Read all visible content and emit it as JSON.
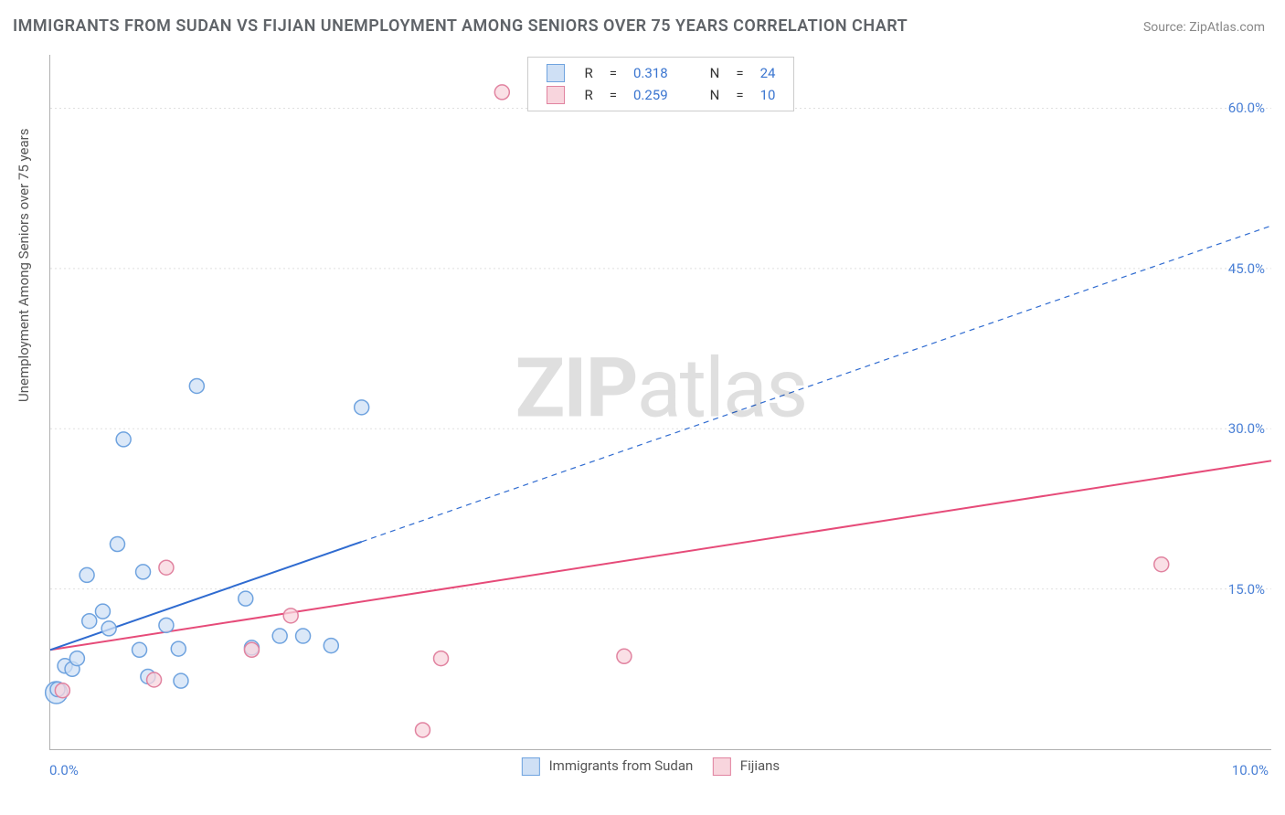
{
  "title": "IMMIGRANTS FROM SUDAN VS FIJIAN UNEMPLOYMENT AMONG SENIORS OVER 75 YEARS CORRELATION CHART",
  "source_prefix": "Source: ",
  "source_name": "ZipAtlas.com",
  "watermark_bold": "ZIP",
  "watermark_rest": "atlas",
  "yaxis_title": "Unemployment Among Seniors over 75 years",
  "chart": {
    "type": "scatter-correlation",
    "background_color": "#ffffff",
    "grid_color": "#e0e0e0",
    "axis_color": "#b0b0b0",
    "tick_label_color": "#4a80d6",
    "xlim": [
      0.0,
      10.0
    ],
    "ylim": [
      0.0,
      65.0
    ],
    "yticks": [
      15.0,
      30.0,
      45.0,
      60.0
    ],
    "ytick_labels": [
      "15.0%",
      "30.0%",
      "45.0%",
      "60.0%"
    ],
    "xticks": [
      0.0,
      10.0
    ],
    "xtick_labels": [
      "0.0%",
      "10.0%"
    ],
    "marker_radius": 8,
    "marker_stroke_width": 1.5,
    "line_width": 2
  },
  "series": {
    "sudan": {
      "label": "Immigrants from Sudan",
      "color_fill": "#cfe0f5",
      "color_stroke": "#6fa3df",
      "line_color": "#2f6bd0",
      "R": "0.318",
      "N": "24",
      "trend": {
        "x1": 0.0,
        "y1": 9.3,
        "x2": 10.0,
        "y2": 49.0,
        "solid_until_x": 2.55
      },
      "points": [
        {
          "x": 0.05,
          "y": 5.3,
          "r": 12
        },
        {
          "x": 0.06,
          "y": 5.6
        },
        {
          "x": 0.12,
          "y": 7.8
        },
        {
          "x": 0.18,
          "y": 7.5
        },
        {
          "x": 0.22,
          "y": 8.5
        },
        {
          "x": 0.32,
          "y": 12.0
        },
        {
          "x": 0.43,
          "y": 12.9
        },
        {
          "x": 0.3,
          "y": 16.3
        },
        {
          "x": 0.55,
          "y": 19.2
        },
        {
          "x": 0.48,
          "y": 11.3
        },
        {
          "x": 0.6,
          "y": 29.0
        },
        {
          "x": 0.76,
          "y": 16.6
        },
        {
          "x": 0.73,
          "y": 9.3
        },
        {
          "x": 0.8,
          "y": 6.8
        },
        {
          "x": 0.95,
          "y": 11.6
        },
        {
          "x": 1.07,
          "y": 6.4
        },
        {
          "x": 1.05,
          "y": 9.4
        },
        {
          "x": 1.2,
          "y": 34.0
        },
        {
          "x": 1.65,
          "y": 9.5
        },
        {
          "x": 1.6,
          "y": 14.1
        },
        {
          "x": 1.88,
          "y": 10.6
        },
        {
          "x": 2.07,
          "y": 10.6
        },
        {
          "x": 2.3,
          "y": 9.7
        },
        {
          "x": 2.55,
          "y": 32.0
        }
      ]
    },
    "fijians": {
      "label": "Fijians",
      "color_fill": "#f8d5dd",
      "color_stroke": "#e183a0",
      "line_color": "#e64b79",
      "R": "0.259",
      "N": "10",
      "trend": {
        "x1": 0.0,
        "y1": 9.3,
        "x2": 10.0,
        "y2": 27.0,
        "solid_until_x": 10.0
      },
      "points": [
        {
          "x": 0.1,
          "y": 5.5
        },
        {
          "x": 0.85,
          "y": 6.5
        },
        {
          "x": 0.95,
          "y": 17.0
        },
        {
          "x": 1.65,
          "y": 9.3
        },
        {
          "x": 1.97,
          "y": 12.5
        },
        {
          "x": 3.05,
          "y": 1.8
        },
        {
          "x": 3.2,
          "y": 8.5
        },
        {
          "x": 3.7,
          "y": 61.5
        },
        {
          "x": 4.7,
          "y": 8.7
        },
        {
          "x": 9.1,
          "y": 17.3
        }
      ]
    }
  },
  "legend_top": {
    "r_label": "R",
    "n_label": "N",
    "eq": "="
  }
}
